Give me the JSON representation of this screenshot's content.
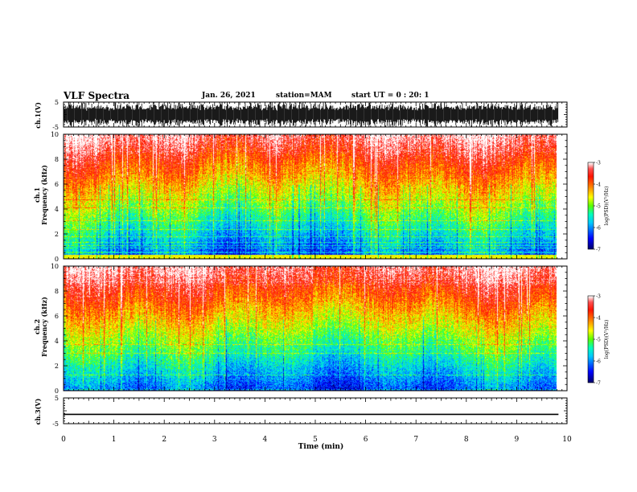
{
  "header": {
    "title": "VLF Spectra",
    "date": "Jan. 26, 2021",
    "station": "station=MAM",
    "start_ut": "start UT =  0 : 20: 1"
  },
  "chart_data": [
    {
      "type": "line",
      "name": "waveform-ch1",
      "ylabel": "ch.1(V)",
      "ylim": [
        -5,
        5
      ],
      "yticks": [
        5,
        -5
      ],
      "xlim": [
        0,
        10
      ]
    },
    {
      "type": "heatmap",
      "name": "spectrogram-ch1",
      "ylabel_top": "ch.1",
      "ylabel": "Frequency (kHz)",
      "ylim": [
        0,
        10
      ],
      "yticks": [
        0,
        2,
        4,
        6,
        8,
        10
      ],
      "xlim": [
        0,
        9.83
      ],
      "colorbar": {
        "label": "log(PSD)(V²/Hz)",
        "range": [
          -7,
          -3
        ],
        "ticks": [
          -3,
          -4,
          -5,
          -6,
          -7
        ]
      }
    },
    {
      "type": "heatmap",
      "name": "spectrogram-ch2",
      "ylabel_top": "ch.2",
      "ylabel": "Frequency (kHz)",
      "ylim": [
        0,
        10
      ],
      "yticks": [
        0,
        2,
        4,
        6,
        8,
        10
      ],
      "xlim": [
        0,
        9.83
      ],
      "colorbar": {
        "label": "log(PSD)(V²/Hz)",
        "range": [
          -7,
          -3
        ],
        "ticks": [
          -3,
          -4,
          -5,
          -6,
          -7
        ]
      }
    },
    {
      "type": "line",
      "name": "waveform-ch3",
      "ylabel": "ch.3(V)",
      "ylim": [
        -5,
        5
      ],
      "yticks": [
        5,
        -5
      ],
      "x": [
        0,
        9.83
      ],
      "y": [
        -1.4,
        -1.4
      ]
    }
  ],
  "xaxis": {
    "label": "Time (min)",
    "range": [
      0,
      10
    ],
    "ticks": [
      "0",
      "1",
      "2",
      "3",
      "4",
      "5",
      "6",
      "7",
      "8",
      "9",
      "10"
    ]
  },
  "colors": {
    "colormap": [
      "#000080",
      "#0000ff",
      "#00c8ff",
      "#00ffc8",
      "#64ff00",
      "#ffff00",
      "#ff8000",
      "#ff0000",
      "#ffffff"
    ]
  }
}
